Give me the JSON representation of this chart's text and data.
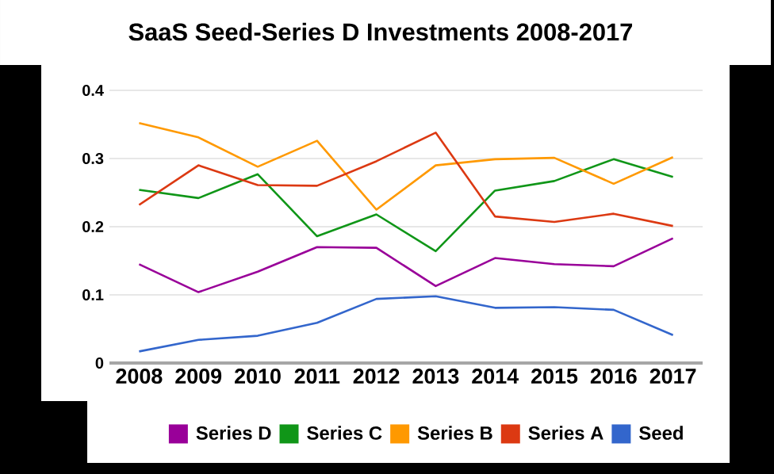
{
  "chart_data": {
    "type": "line",
    "title": "SaaS Seed-Series D Investments 2008-2017",
    "categories": [
      "2008",
      "2009",
      "2010",
      "2011",
      "2012",
      "2013",
      "2014",
      "2015",
      "2016",
      "2017"
    ],
    "series": [
      {
        "name": "Series D",
        "color": "#990099",
        "values": [
          0.145,
          0.104,
          0.134,
          0.17,
          0.169,
          0.113,
          0.154,
          0.145,
          0.142,
          0.183
        ]
      },
      {
        "name": "Series C",
        "color": "#109618",
        "values": [
          0.254,
          0.242,
          0.277,
          0.186,
          0.218,
          0.164,
          0.253,
          0.267,
          0.299,
          0.273
        ]
      },
      {
        "name": "Series B",
        "color": "#ff9900",
        "values": [
          0.352,
          0.331,
          0.288,
          0.326,
          0.225,
          0.29,
          0.299,
          0.301,
          0.263,
          0.302
        ]
      },
      {
        "name": "Series A",
        "color": "#dc3912",
        "values": [
          0.232,
          0.29,
          0.261,
          0.26,
          0.296,
          0.338,
          0.215,
          0.207,
          0.219,
          0.201
        ]
      },
      {
        "name": "Seed",
        "color": "#3366cc",
        "values": [
          0.017,
          0.034,
          0.04,
          0.059,
          0.094,
          0.098,
          0.081,
          0.082,
          0.078,
          0.041
        ]
      }
    ],
    "ylim": [
      0,
      0.4
    ],
    "yticks": [
      0,
      0.1,
      0.2,
      0.3,
      0.4
    ],
    "grid": "y",
    "legend": "bottom"
  }
}
